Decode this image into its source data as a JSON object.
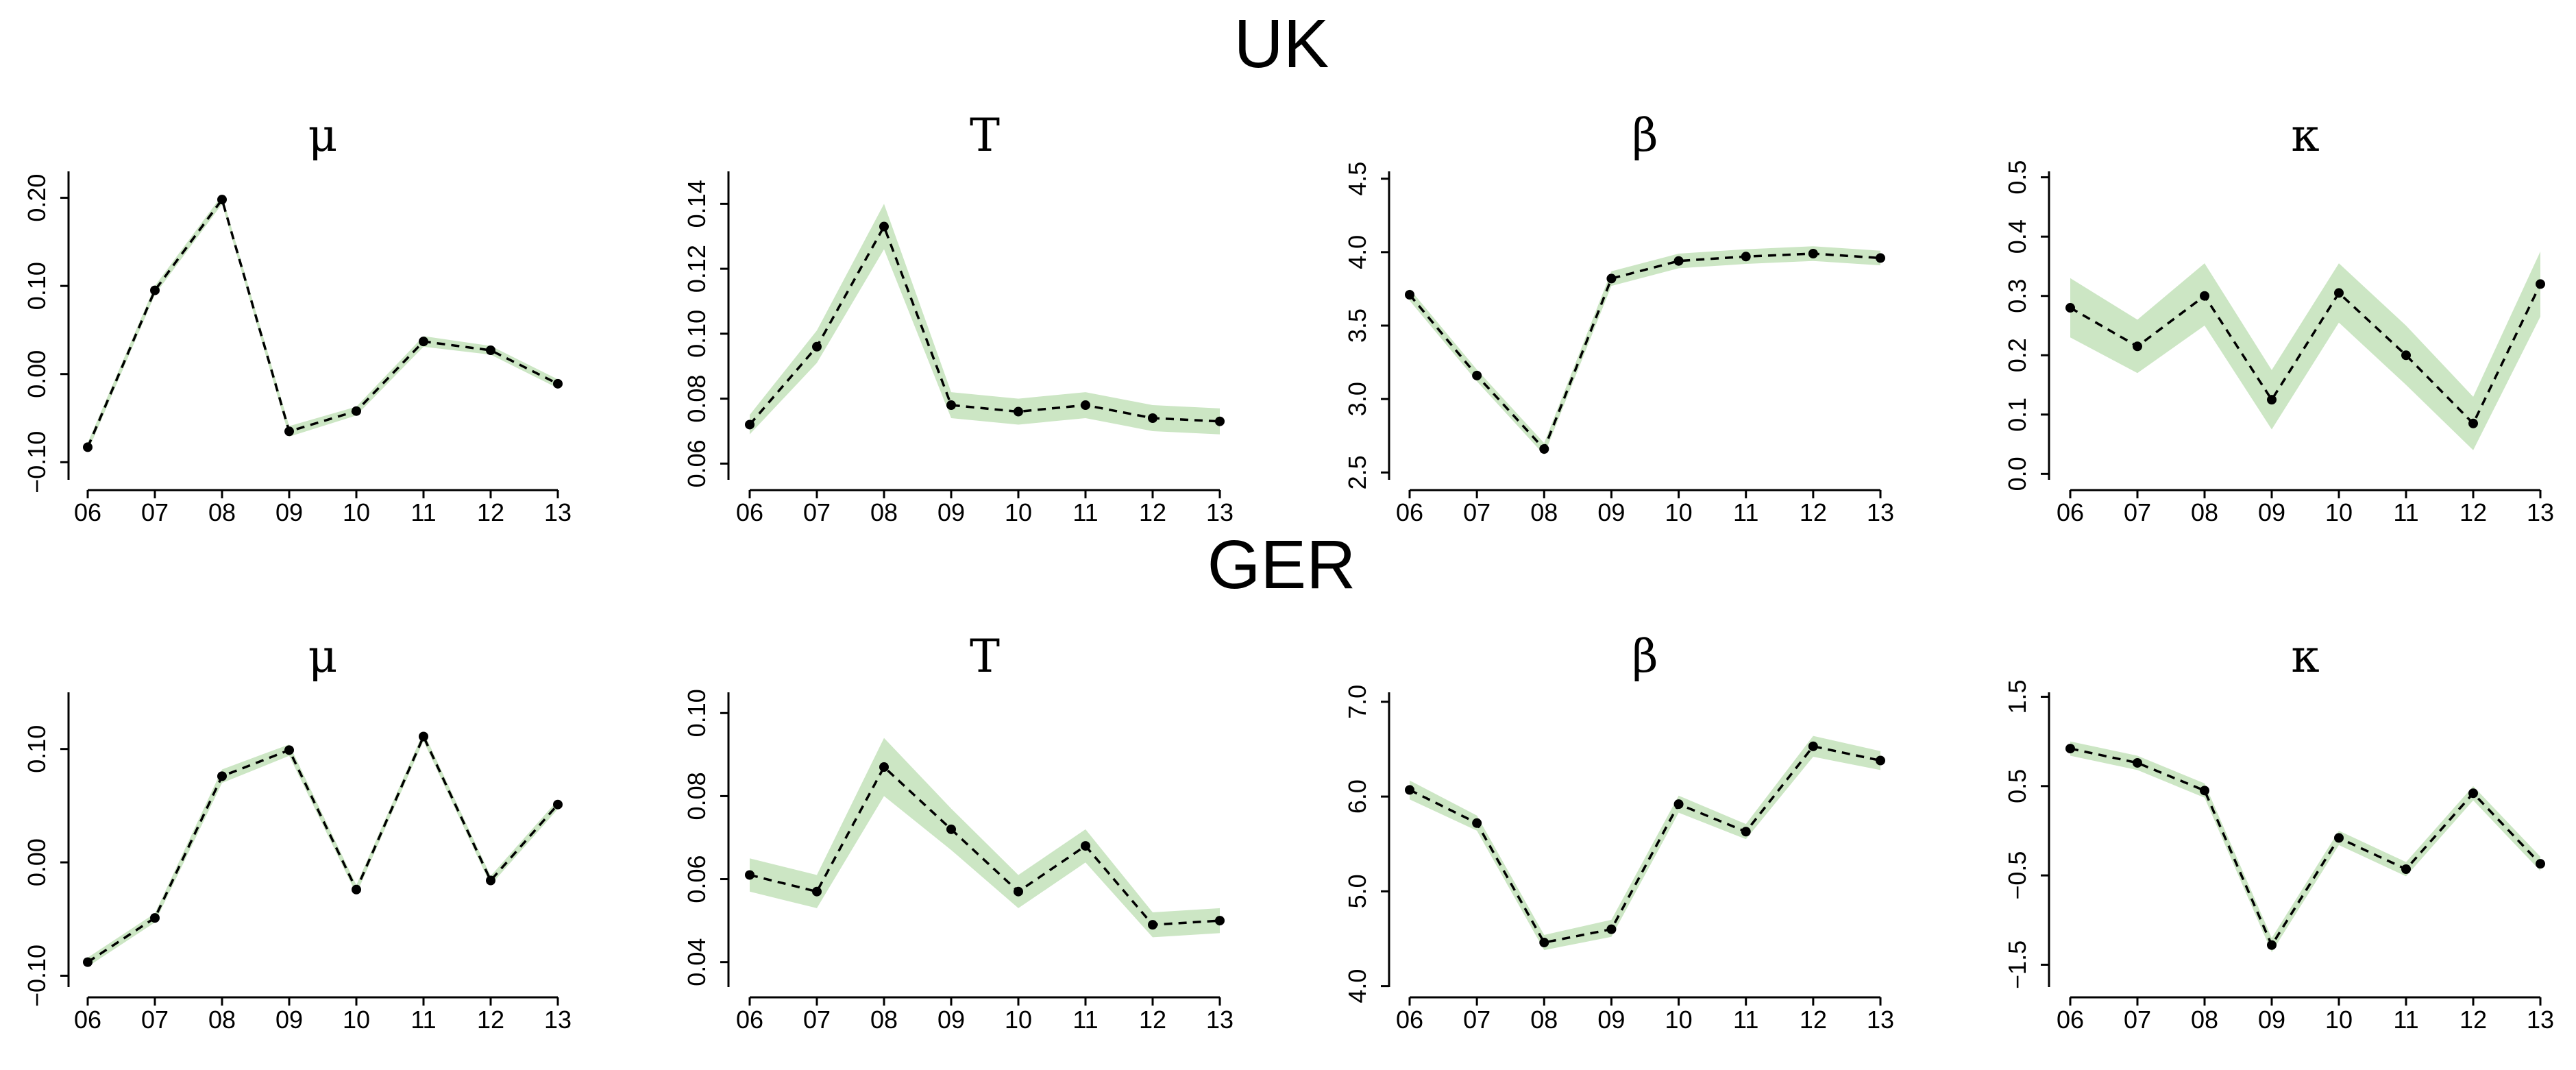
{
  "colors": {
    "band": "#cce6c4",
    "line": "#000000",
    "background": "#ffffff"
  },
  "rows": [
    {
      "title": "UK"
    },
    {
      "title": "GER"
    }
  ],
  "chart_data": [
    {
      "type": "line",
      "row": 0,
      "title": "μ",
      "categories": [
        "06",
        "07",
        "08",
        "09",
        "10",
        "11",
        "12",
        "13"
      ],
      "values": [
        -0.083,
        0.095,
        0.198,
        -0.065,
        -0.042,
        0.037,
        0.027,
        -0.011
      ],
      "lower": [
        -0.088,
        0.09,
        0.193,
        -0.071,
        -0.047,
        0.031,
        0.022,
        -0.016
      ],
      "upper": [
        -0.078,
        0.1,
        0.203,
        -0.059,
        -0.037,
        0.043,
        0.032,
        -0.006
      ],
      "ylim": [
        -0.12,
        0.23
      ],
      "yticks": [
        -0.1,
        0.0,
        0.1,
        0.2
      ],
      "ytick_labels": [
        "−0.10",
        "0.00",
        "0.10",
        "0.20"
      ]
    },
    {
      "type": "line",
      "row": 0,
      "title": "T",
      "categories": [
        "06",
        "07",
        "08",
        "09",
        "10",
        "11",
        "12",
        "13"
      ],
      "values": [
        0.072,
        0.096,
        0.133,
        0.078,
        0.076,
        0.078,
        0.074,
        0.073
      ],
      "lower": [
        0.069,
        0.091,
        0.126,
        0.074,
        0.072,
        0.074,
        0.07,
        0.069
      ],
      "upper": [
        0.075,
        0.101,
        0.14,
        0.082,
        0.08,
        0.082,
        0.078,
        0.077
      ],
      "ylim": [
        0.055,
        0.15
      ],
      "yticks": [
        0.06,
        0.08,
        0.1,
        0.12,
        0.14
      ],
      "ytick_labels": [
        "0.06",
        "0.08",
        "0.10",
        "0.12",
        "0.14"
      ]
    },
    {
      "type": "line",
      "row": 0,
      "title": "β",
      "categories": [
        "06",
        "07",
        "08",
        "09",
        "10",
        "11",
        "12",
        "13"
      ],
      "values": [
        3.71,
        3.16,
        2.66,
        3.82,
        3.94,
        3.97,
        3.99,
        3.96
      ],
      "lower": [
        3.67,
        3.12,
        2.62,
        3.77,
        3.89,
        3.92,
        3.94,
        3.91
      ],
      "upper": [
        3.75,
        3.2,
        2.7,
        3.87,
        3.99,
        4.02,
        4.04,
        4.01
      ],
      "ylim": [
        2.45,
        4.55
      ],
      "yticks": [
        2.5,
        3.0,
        3.5,
        4.0,
        4.5
      ],
      "ytick_labels": [
        "2.5",
        "3.0",
        "3.5",
        "4.0",
        "4.5"
      ]
    },
    {
      "type": "line",
      "row": 0,
      "title": "κ",
      "categories": [
        "06",
        "07",
        "08",
        "09",
        "10",
        "11",
        "12",
        "13"
      ],
      "values": [
        0.28,
        0.215,
        0.3,
        0.125,
        0.305,
        0.2,
        0.085,
        0.32
      ],
      "lower": [
        0.23,
        0.17,
        0.25,
        0.075,
        0.255,
        0.15,
        0.04,
        0.265
      ],
      "upper": [
        0.33,
        0.26,
        0.355,
        0.175,
        0.355,
        0.25,
        0.13,
        0.375
      ],
      "ylim": [
        -0.01,
        0.51
      ],
      "yticks": [
        0.0,
        0.1,
        0.2,
        0.3,
        0.4,
        0.5
      ],
      "ytick_labels": [
        "0.0",
        "0.1",
        "0.2",
        "0.3",
        "0.4",
        "0.5"
      ]
    },
    {
      "type": "line",
      "row": 1,
      "title": "μ",
      "categories": [
        "06",
        "07",
        "08",
        "09",
        "10",
        "11",
        "12",
        "13"
      ],
      "values": [
        -0.088,
        -0.049,
        0.076,
        0.099,
        -0.024,
        0.111,
        -0.016,
        0.051
      ],
      "lower": [
        -0.092,
        -0.053,
        0.07,
        0.094,
        -0.028,
        0.107,
        -0.02,
        0.047
      ],
      "upper": [
        -0.084,
        -0.045,
        0.082,
        0.104,
        -0.02,
        0.115,
        -0.012,
        0.055
      ],
      "ylim": [
        -0.11,
        0.15
      ],
      "yticks": [
        -0.1,
        0.0,
        0.1
      ],
      "ytick_labels": [
        "−0.10",
        "0.00",
        "0.10"
      ]
    },
    {
      "type": "line",
      "row": 1,
      "title": "T",
      "categories": [
        "06",
        "07",
        "08",
        "09",
        "10",
        "11",
        "12",
        "13"
      ],
      "values": [
        0.061,
        0.057,
        0.087,
        0.072,
        0.057,
        0.068,
        0.049,
        0.05
      ],
      "lower": [
        0.057,
        0.053,
        0.08,
        0.067,
        0.053,
        0.064,
        0.046,
        0.047
      ],
      "upper": [
        0.065,
        0.061,
        0.094,
        0.077,
        0.061,
        0.072,
        0.052,
        0.053
      ],
      "ylim": [
        0.034,
        0.105
      ],
      "yticks": [
        0.04,
        0.06,
        0.08,
        0.1
      ],
      "ytick_labels": [
        "0.04",
        "0.06",
        "0.08",
        "0.10"
      ]
    },
    {
      "type": "line",
      "row": 1,
      "title": "β",
      "categories": [
        "06",
        "07",
        "08",
        "09",
        "10",
        "11",
        "12",
        "13"
      ],
      "values": [
        6.07,
        5.72,
        4.46,
        4.6,
        5.92,
        5.63,
        6.53,
        6.38
      ],
      "lower": [
        5.97,
        5.64,
        4.38,
        4.52,
        5.83,
        5.55,
        6.42,
        6.28
      ],
      "upper": [
        6.17,
        5.8,
        4.54,
        4.7,
        6.01,
        5.71,
        6.64,
        6.48
      ],
      "ylim": [
        3.99,
        7.1
      ],
      "yticks": [
        4.0,
        5.0,
        6.0,
        7.0
      ],
      "ytick_labels": [
        "4.0",
        "5.0",
        "6.0",
        "7.0"
      ]
    },
    {
      "type": "line",
      "row": 1,
      "title": "κ",
      "categories": [
        "06",
        "07",
        "08",
        "09",
        "10",
        "11",
        "12",
        "13"
      ],
      "values": [
        0.92,
        0.76,
        0.45,
        -1.28,
        -0.08,
        -0.43,
        0.42,
        -0.37
      ],
      "lower": [
        0.84,
        0.68,
        0.37,
        -1.36,
        -0.16,
        -0.51,
        0.34,
        -0.45
      ],
      "upper": [
        1.0,
        0.84,
        0.53,
        -1.2,
        0.0,
        -0.35,
        0.5,
        -0.29
      ],
      "ylim": [
        -1.75,
        1.55
      ],
      "yticks": [
        -1.5,
        -0.5,
        0.5,
        1.5
      ],
      "ytick_labels": [
        "−1.5",
        "−0.5",
        "0.5",
        "1.5"
      ]
    }
  ]
}
